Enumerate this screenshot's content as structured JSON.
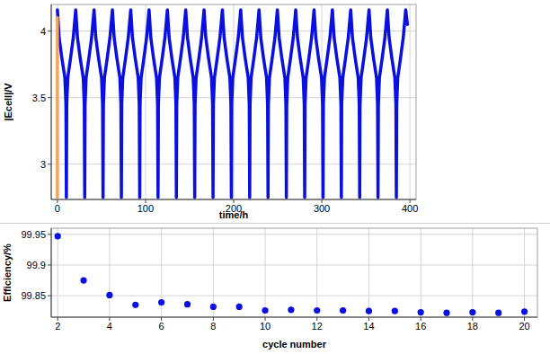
{
  "chart_data": [
    {
      "type": "line",
      "x_label": "time/h",
      "y_label": "|Ecell|/V",
      "xlim": [
        -7,
        407
      ],
      "xticks": [
        0,
        100,
        200,
        300,
        400
      ],
      "ylim": [
        2.735,
        4.2
      ],
      "yticks": [
        3,
        3.5,
        4
      ],
      "grid": true,
      "series": [
        {
          "color": "#0a10e0",
          "line_style": "solid",
          "x": [
            0,
            2,
            5,
            8.5,
            9.7,
            10.2,
            10.6,
            11.8,
            15,
            18,
            20.8,
            22.8,
            25.8,
            29.3,
            30.5,
            31,
            31.4,
            32.6,
            35.8,
            38.8,
            41.6,
            43.6,
            46.6,
            50.1,
            51.3,
            51.8,
            52.2,
            53.4,
            56.6,
            59.6,
            62.4,
            64.4,
            67.4,
            70.9,
            72.1,
            72.6,
            73,
            74.2,
            77.4,
            80.4,
            83.2,
            85.2,
            88.2,
            91.7,
            92.9,
            93.4,
            93.8,
            95,
            98.2,
            101.2,
            104,
            106,
            109,
            112.5,
            113.7,
            114.2,
            114.6,
            115.8,
            119,
            122,
            124.8,
            126.8,
            129.8,
            133.3,
            134.5,
            135,
            135.4,
            136.6,
            139.8,
            142.8,
            145.6,
            147.6,
            150.6,
            154.1,
            155.3,
            155.8,
            156.2,
            157.4,
            160.6,
            163.6,
            166.4,
            168.4,
            171.4,
            174.9,
            176.1,
            176.6,
            177,
            178.2,
            181.4,
            184.4,
            187.2,
            189.2,
            192.2,
            195.7,
            196.9,
            197.4,
            197.8,
            199,
            202.2,
            205.2,
            208,
            210,
            213,
            216.5,
            217.7,
            218.2,
            218.6,
            219.8,
            223,
            226,
            228.8,
            230.8,
            233.8,
            237.3,
            238.5,
            239,
            239.4,
            240.6,
            243.8,
            246.8,
            249.6,
            251.6,
            254.6,
            258.1,
            259.3,
            259.8,
            260.2,
            261.4,
            264.6,
            267.6,
            270.4,
            272.4,
            275.4,
            278.9,
            280.1,
            280.6,
            281,
            282.2,
            285.4,
            288.4,
            291.2,
            293.2,
            296.2,
            299.7,
            300.9,
            301.4,
            301.8,
            303,
            306.2,
            309.2,
            312,
            314,
            317,
            320.5,
            321.7,
            322.2,
            322.6,
            323.8,
            327,
            330,
            332.8,
            334.8,
            337.8,
            341.3,
            342.5,
            343,
            343.4,
            344.6,
            347.8,
            350.8,
            353.6,
            355.6,
            358.6,
            362.1,
            363.3,
            363.8,
            364.2,
            365.4,
            368.6,
            371.6,
            374.4,
            376.4,
            379.4,
            382.9,
            384.1,
            384.6,
            385,
            386.2,
            389.4,
            392.4,
            395.2,
            397.2
          ],
          "values": [
            4.16,
            3.95,
            3.8,
            3.65,
            3.45,
            2.75,
            3.45,
            3.65,
            3.8,
            3.95,
            4.16,
            3.95,
            3.8,
            3.65,
            3.45,
            2.75,
            3.45,
            3.65,
            3.8,
            3.95,
            4.16,
            3.95,
            3.8,
            3.65,
            3.45,
            2.75,
            3.45,
            3.65,
            3.8,
            3.95,
            4.16,
            3.95,
            3.8,
            3.65,
            3.45,
            2.75,
            3.45,
            3.65,
            3.8,
            3.95,
            4.16,
            3.95,
            3.8,
            3.65,
            3.45,
            2.75,
            3.45,
            3.65,
            3.8,
            3.95,
            4.16,
            3.95,
            3.8,
            3.65,
            3.45,
            2.75,
            3.45,
            3.65,
            3.8,
            3.95,
            4.16,
            3.95,
            3.8,
            3.65,
            3.45,
            2.75,
            3.45,
            3.65,
            3.8,
            3.95,
            4.16,
            3.95,
            3.8,
            3.65,
            3.45,
            2.75,
            3.45,
            3.65,
            3.8,
            3.95,
            4.16,
            3.95,
            3.8,
            3.65,
            3.45,
            2.75,
            3.45,
            3.65,
            3.8,
            3.95,
            4.16,
            3.95,
            3.8,
            3.65,
            3.45,
            2.75,
            3.45,
            3.65,
            3.8,
            3.95,
            4.16,
            3.95,
            3.8,
            3.65,
            3.45,
            2.75,
            3.45,
            3.65,
            3.8,
            3.95,
            4.16,
            3.95,
            3.8,
            3.65,
            3.45,
            2.75,
            3.45,
            3.65,
            3.8,
            3.95,
            4.16,
            3.95,
            3.8,
            3.65,
            3.45,
            2.75,
            3.45,
            3.65,
            3.8,
            3.95,
            4.16,
            3.95,
            3.8,
            3.65,
            3.45,
            2.75,
            3.45,
            3.65,
            3.8,
            3.95,
            4.16,
            3.95,
            3.8,
            3.65,
            3.45,
            2.75,
            3.45,
            3.65,
            3.8,
            3.95,
            4.16,
            3.95,
            3.8,
            3.65,
            3.45,
            2.75,
            3.45,
            3.65,
            3.8,
            3.95,
            4.16,
            3.95,
            3.8,
            3.65,
            3.45,
            2.75,
            3.45,
            3.65,
            3.8,
            3.95,
            4.16,
            3.95,
            3.8,
            3.65,
            3.45,
            2.75,
            3.45,
            3.65,
            3.8,
            3.95,
            4.16,
            3.95,
            3.8,
            3.65,
            3.45,
            2.75,
            3.45,
            3.65,
            3.8,
            3.95,
            4.16,
            4.05
          ]
        },
        {
          "color": "#f5a25d",
          "line_style": "solid",
          "x": [
            0,
            0
          ],
          "values": [
            2.75,
            4.1
          ]
        }
      ]
    },
    {
      "type": "scatter",
      "x_label": "cycle number",
      "y_label": "Efficiency/%",
      "xlim": [
        1.75,
        20.5
      ],
      "xticks": [
        2,
        4,
        6,
        8,
        10,
        12,
        14,
        16,
        18,
        20
      ],
      "ylim": [
        99.815,
        99.96
      ],
      "yticks": [
        99.85,
        99.9,
        99.95
      ],
      "grid": true,
      "x": [
        2,
        3,
        4,
        5,
        6,
        7,
        8,
        9,
        10,
        11,
        12,
        13,
        14,
        15,
        16,
        17,
        18,
        19,
        20
      ],
      "series": [
        {
          "color": "#0a10e0",
          "marker": "circle",
          "values": [
            99.947,
            99.875,
            99.851,
            99.835,
            99.839,
            99.836,
            99.832,
            99.832,
            99.826,
            99.827,
            99.826,
            99.826,
            99.825,
            99.825,
            99.823,
            99.822,
            99.823,
            99.822,
            99.824
          ]
        }
      ]
    }
  ]
}
